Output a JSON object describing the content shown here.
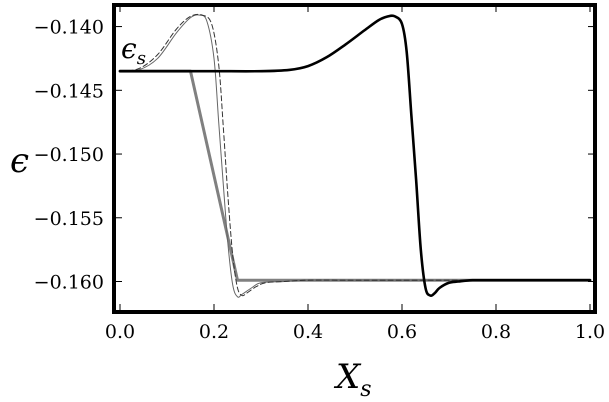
{
  "chart_data": {
    "type": "line",
    "xlabel": "X",
    "xlabel_sub": "s",
    "ylabel": "ϵ",
    "xlim": [
      0.0,
      1.0
    ],
    "ylim": [
      -0.162,
      -0.1387
    ],
    "x_ticks": [
      0.0,
      0.2,
      0.4,
      0.6,
      0.8,
      1.0
    ],
    "x_tick_labels": [
      "0.0",
      "0.2",
      "0.4",
      "0.6",
      "0.8",
      "1.0"
    ],
    "y_ticks": [
      -0.14,
      -0.145,
      -0.15,
      -0.155,
      -0.16
    ],
    "y_tick_labels": [
      "−0.140",
      "−0.145",
      "−0.150",
      "−0.155",
      "−0.160"
    ],
    "grid": false,
    "legend": "none",
    "annotations": [
      {
        "text": "ϵ",
        "sub": "s",
        "x": 0.0,
        "y": -0.143
      }
    ],
    "series": [
      {
        "color": "#000000",
        "style": "solid-thick",
        "x": [
          0.0,
          0.1,
          0.2,
          0.3,
          0.36,
          0.4,
          0.44,
          0.48,
          0.52,
          0.55,
          0.57,
          0.585,
          0.6,
          0.61,
          0.62,
          0.63,
          0.64,
          0.65,
          0.66,
          0.67,
          0.68,
          0.7,
          0.72,
          0.75,
          0.8,
          0.9,
          1.0
        ],
        "y": [
          -0.1435,
          -0.1435,
          -0.1435,
          -0.1435,
          -0.1434,
          -0.1431,
          -0.1424,
          -0.1414,
          -0.1403,
          -0.1395,
          -0.1392,
          -0.1392,
          -0.1398,
          -0.142,
          -0.147,
          -0.152,
          -0.1575,
          -0.1605,
          -0.1611,
          -0.1609,
          -0.1605,
          -0.1601,
          -0.16,
          -0.1599,
          -0.1599,
          -0.1599,
          -0.1599
        ]
      },
      {
        "color": "#808080",
        "style": "solid-gray",
        "x": [
          0.0,
          0.05,
          0.1,
          0.15,
          0.25,
          0.3,
          0.5,
          0.7,
          1.0
        ],
        "y": [
          -0.1435,
          -0.1435,
          -0.1435,
          -0.1435,
          -0.1599,
          -0.1599,
          -0.1599,
          -0.1599,
          -0.1599
        ]
      },
      {
        "color": "#666666",
        "style": "thin",
        "x": [
          0.0,
          0.04,
          0.08,
          0.12,
          0.15,
          0.17,
          0.185,
          0.2,
          0.21,
          0.22,
          0.23,
          0.24,
          0.25,
          0.26,
          0.28,
          0.3,
          0.35,
          0.4,
          0.5,
          0.7,
          1.0
        ],
        "y": [
          -0.1435,
          -0.1434,
          -0.1425,
          -0.1405,
          -0.1393,
          -0.1391,
          -0.1396,
          -0.1425,
          -0.1475,
          -0.1525,
          -0.1572,
          -0.1603,
          -0.1612,
          -0.161,
          -0.1605,
          -0.1601,
          -0.16,
          -0.1599,
          -0.1599,
          -0.1599,
          -0.1599
        ]
      },
      {
        "color": "#333333",
        "style": "dashed",
        "x": [
          0.0,
          0.04,
          0.08,
          0.12,
          0.15,
          0.175,
          0.195,
          0.21,
          0.22,
          0.23,
          0.24,
          0.25,
          0.26,
          0.27,
          0.29,
          0.31,
          0.35,
          0.4,
          0.5,
          0.7,
          1.0
        ],
        "y": [
          -0.1435,
          -0.1433,
          -0.1422,
          -0.1402,
          -0.1392,
          -0.1391,
          -0.1398,
          -0.143,
          -0.148,
          -0.1535,
          -0.158,
          -0.1605,
          -0.1611,
          -0.1609,
          -0.1604,
          -0.1601,
          -0.16,
          -0.1599,
          -0.1599,
          -0.1599,
          -0.1599
        ]
      }
    ]
  }
}
